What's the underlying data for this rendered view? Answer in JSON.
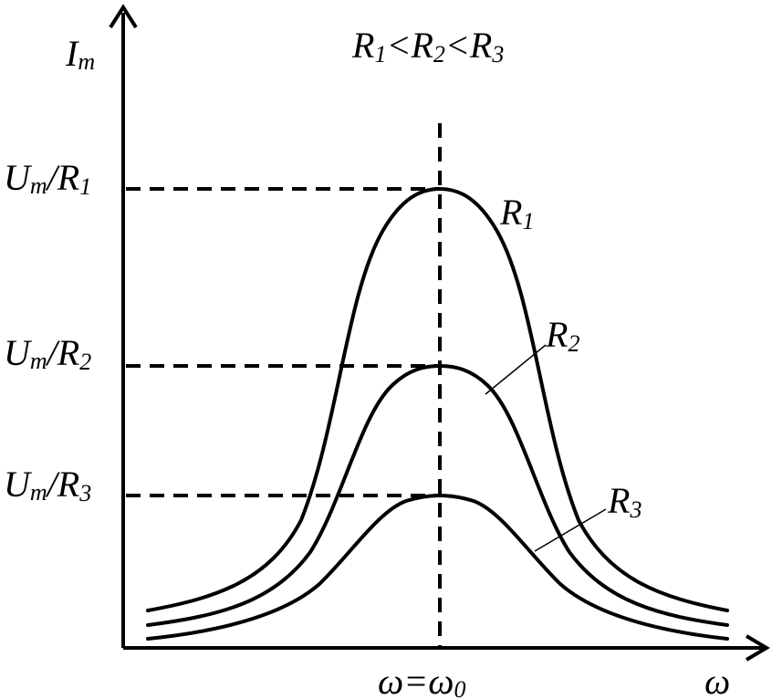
{
  "y_axis": {
    "symbol": "I",
    "subscript": "m"
  },
  "x_axis": {
    "symbol": "ω"
  },
  "resonance": {
    "left": "ω",
    "eq": "=",
    "right": "ω",
    "right_sub": "0"
  },
  "relation": {
    "r": "R",
    "s1": "1",
    "lt1": "<",
    "s2": "2",
    "lt2": "<",
    "s3": "3"
  },
  "y_levels": [
    {
      "u": "U",
      "m": "m",
      "slash": "/R",
      "n": "1"
    },
    {
      "u": "U",
      "m": "m",
      "slash": "/R",
      "n": "2"
    },
    {
      "u": "U",
      "m": "m",
      "slash": "/R",
      "n": "3"
    }
  ],
  "curves": [
    {
      "r": "R",
      "n": "1"
    },
    {
      "r": "R",
      "n": "2"
    },
    {
      "r": "R",
      "n": "3"
    }
  ]
}
